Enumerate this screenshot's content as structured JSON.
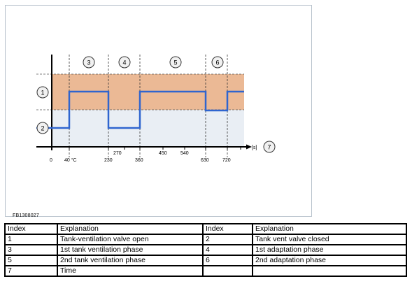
{
  "figure": {
    "code": "FB1308027",
    "callouts": {
      "c1": "1",
      "c2": "2",
      "c3": "3",
      "c4": "4",
      "c5": "5",
      "c6": "6",
      "c7": "7"
    },
    "axis": {
      "unit": "[s]",
      "ticks_lower": [
        "0",
        "40 °C",
        "230",
        "360",
        "630",
        "720"
      ],
      "ticks_upper": [
        "270",
        "450",
        "540"
      ]
    },
    "colors": {
      "open_band": "#ebb995",
      "closed_band": "#e9eef4",
      "signal": "#2f65cf",
      "callout_fill": "#f1f1f1"
    },
    "signal_states": [
      {
        "from": 0,
        "to": 40,
        "state": "closed"
      },
      {
        "from": 40,
        "to": 230,
        "state": "open"
      },
      {
        "from": 230,
        "to": 360,
        "state": "closed"
      },
      {
        "from": 360,
        "to": 630,
        "state": "open"
      },
      {
        "from": 630,
        "to": 720,
        "state": "adaptation"
      },
      {
        "from": 720,
        "to": 800,
        "state": "open"
      }
    ]
  },
  "legend": {
    "header": {
      "index1": "Index",
      "expl1": "Explanation",
      "index2": "Index",
      "expl2": "Explanation"
    },
    "rows": [
      {
        "i1": "1",
        "e1": "Tank-ventilation valve open",
        "i2": "2",
        "e2": "Tank vent valve closed"
      },
      {
        "i1": "3",
        "e1": "1st tank ventilation phase",
        "i2": "4",
        "e2": "1st adaptation phase"
      },
      {
        "i1": "5",
        "e1": "2nd tank ventilation phase",
        "i2": "6",
        "e2": "2nd adaptation phase"
      },
      {
        "i1": "7",
        "e1": "Time",
        "i2": "",
        "e2": ""
      }
    ]
  }
}
